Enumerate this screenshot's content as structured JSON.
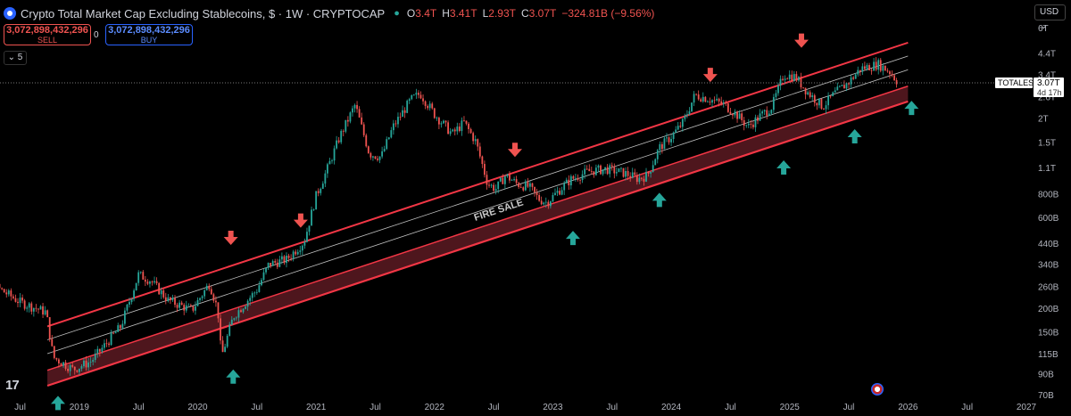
{
  "header": {
    "title": "Crypto Total Market Cap Excluding Stablecoins, $ · 1W · CRYPTOCAP",
    "o_key": "O",
    "o_val": "3.4T",
    "h_key": "H",
    "h_val": "3.41T",
    "l_key": "L",
    "l_val": "2.93T",
    "c_key": "C",
    "c_val": "3.07T",
    "change": "−324.81B (−9.56%)"
  },
  "trade": {
    "sell_price": "3,072,898,432,296",
    "sell_label": "SELL",
    "buy_price": "3,072,898,432,296",
    "buy_label": "BUY",
    "spread": "0"
  },
  "collapse_label": "5",
  "currency": "USD",
  "colors": {
    "up": "#26a69a",
    "down": "#ef5350",
    "channel": "#f23645",
    "band": "#5c1a22",
    "midline": "#c0c0c0",
    "axis_text": "#b2b5be"
  },
  "chart_data": {
    "type": "candlestick",
    "title": "Crypto Total Market Cap Excluding Stablecoins",
    "y_scale": "log",
    "y_ticks": [
      "6T",
      "4.4T",
      "3.4T",
      "2.6T",
      "2T",
      "1.5T",
      "1.1T",
      "800B",
      "600B",
      "440B",
      "340B",
      "260B",
      "200B",
      "150B",
      "115B",
      "90B",
      "70B"
    ],
    "y_tick_values": [
      6000,
      4400,
      3400,
      2600,
      2000,
      1500,
      1100,
      800,
      600,
      440,
      340,
      260,
      200,
      150,
      115,
      90,
      70
    ],
    "x_ticks": [
      "Jul",
      "2019",
      "Jul",
      "2020",
      "Jul",
      "2021",
      "Jul",
      "2022",
      "Jul",
      "2023",
      "Jul",
      "2024",
      "Jul",
      "2025",
      "Jul",
      "2026",
      "Jul",
      "2027"
    ],
    "x_tick_dates": [
      2018.5,
      2019.0,
      2019.5,
      2020.0,
      2020.5,
      2021.0,
      2021.5,
      2022.0,
      2022.5,
      2023.0,
      2023.5,
      2024.0,
      2024.5,
      2025.0,
      2025.5,
      2026.0,
      2026.5,
      2027.0
    ],
    "price_path": [
      [
        2018.0,
        400
      ],
      [
        2018.25,
        270
      ],
      [
        2018.5,
        215
      ],
      [
        2018.72,
        190
      ],
      [
        2018.78,
        110
      ],
      [
        2018.95,
        95
      ],
      [
        2019.1,
        105
      ],
      [
        2019.35,
        160
      ],
      [
        2019.5,
        300
      ],
      [
        2019.6,
        280
      ],
      [
        2019.75,
        220
      ],
      [
        2019.95,
        195
      ],
      [
        2020.1,
        270
      ],
      [
        2020.17,
        195
      ],
      [
        2020.2,
        110
      ],
      [
        2020.3,
        180
      ],
      [
        2020.5,
        250
      ],
      [
        2020.6,
        340
      ],
      [
        2020.75,
        360
      ],
      [
        2020.9,
        450
      ],
      [
        2021.0,
        780
      ],
      [
        2021.1,
        1100
      ],
      [
        2021.2,
        1600
      ],
      [
        2021.33,
        2350
      ],
      [
        2021.45,
        1300
      ],
      [
        2021.55,
        1250
      ],
      [
        2021.65,
        1800
      ],
      [
        2021.8,
        2500
      ],
      [
        2021.88,
        2700
      ],
      [
        2022.0,
        2100
      ],
      [
        2022.15,
        1650
      ],
      [
        2022.25,
        1900
      ],
      [
        2022.35,
        1500
      ],
      [
        2022.45,
        900
      ],
      [
        2022.52,
        850
      ],
      [
        2022.6,
        1000
      ],
      [
        2022.7,
        900
      ],
      [
        2022.8,
        870
      ],
      [
        2022.88,
        750
      ],
      [
        2022.95,
        720
      ],
      [
        2023.05,
        830
      ],
      [
        2023.15,
        950
      ],
      [
        2023.3,
        1050
      ],
      [
        2023.45,
        1080
      ],
      [
        2023.6,
        1030
      ],
      [
        2023.72,
        960
      ],
      [
        2023.8,
        1000
      ],
      [
        2023.9,
        1400
      ],
      [
        2024.0,
        1600
      ],
      [
        2024.1,
        1900
      ],
      [
        2024.2,
        2650
      ],
      [
        2024.3,
        2550
      ],
      [
        2024.45,
        2350
      ],
      [
        2024.55,
        2100
      ],
      [
        2024.65,
        1800
      ],
      [
        2024.75,
        2050
      ],
      [
        2024.85,
        2300
      ],
      [
        2024.95,
        3400
      ],
      [
        2025.05,
        3300
      ],
      [
        2025.15,
        2750
      ],
      [
        2025.28,
        2300
      ],
      [
        2025.38,
        2700
      ],
      [
        2025.5,
        3100
      ],
      [
        2025.6,
        3650
      ],
      [
        2025.75,
        3850
      ],
      [
        2025.85,
        3500
      ],
      [
        2025.92,
        3070
      ]
    ],
    "channel": {
      "upper": [
        [
          2018.73,
          160
        ],
        [
          2026.0,
          5000
        ]
      ],
      "mid_upper": [
        [
          2018.73,
          136
        ],
        [
          2026.0,
          4250
        ]
      ],
      "mid_lower": [
        [
          2018.73,
          115
        ],
        [
          2026.0,
          3600
        ]
      ],
      "band_top": [
        [
          2018.73,
          94
        ],
        [
          2026.0,
          2950
        ]
      ],
      "lower": [
        [
          2018.73,
          78
        ],
        [
          2026.0,
          2450
        ]
      ]
    },
    "band_label": "FIRE SALE",
    "sell_arrows": [
      [
        2020.28,
        430
      ],
      [
        2020.87,
        530
      ],
      [
        2022.68,
        1250
      ],
      [
        2024.33,
        3100
      ],
      [
        2025.1,
        4700
      ]
    ],
    "buy_arrows": [
      [
        2018.82,
        69
      ],
      [
        2020.3,
        95
      ],
      [
        2023.17,
        510
      ],
      [
        2023.9,
        810
      ],
      [
        2024.95,
        1200
      ],
      [
        2025.55,
        1750
      ],
      [
        2026.03,
        2470
      ]
    ],
    "last_price_label": "TOTALES",
    "last_price": "3.07T",
    "countdown": "4d 17h"
  }
}
